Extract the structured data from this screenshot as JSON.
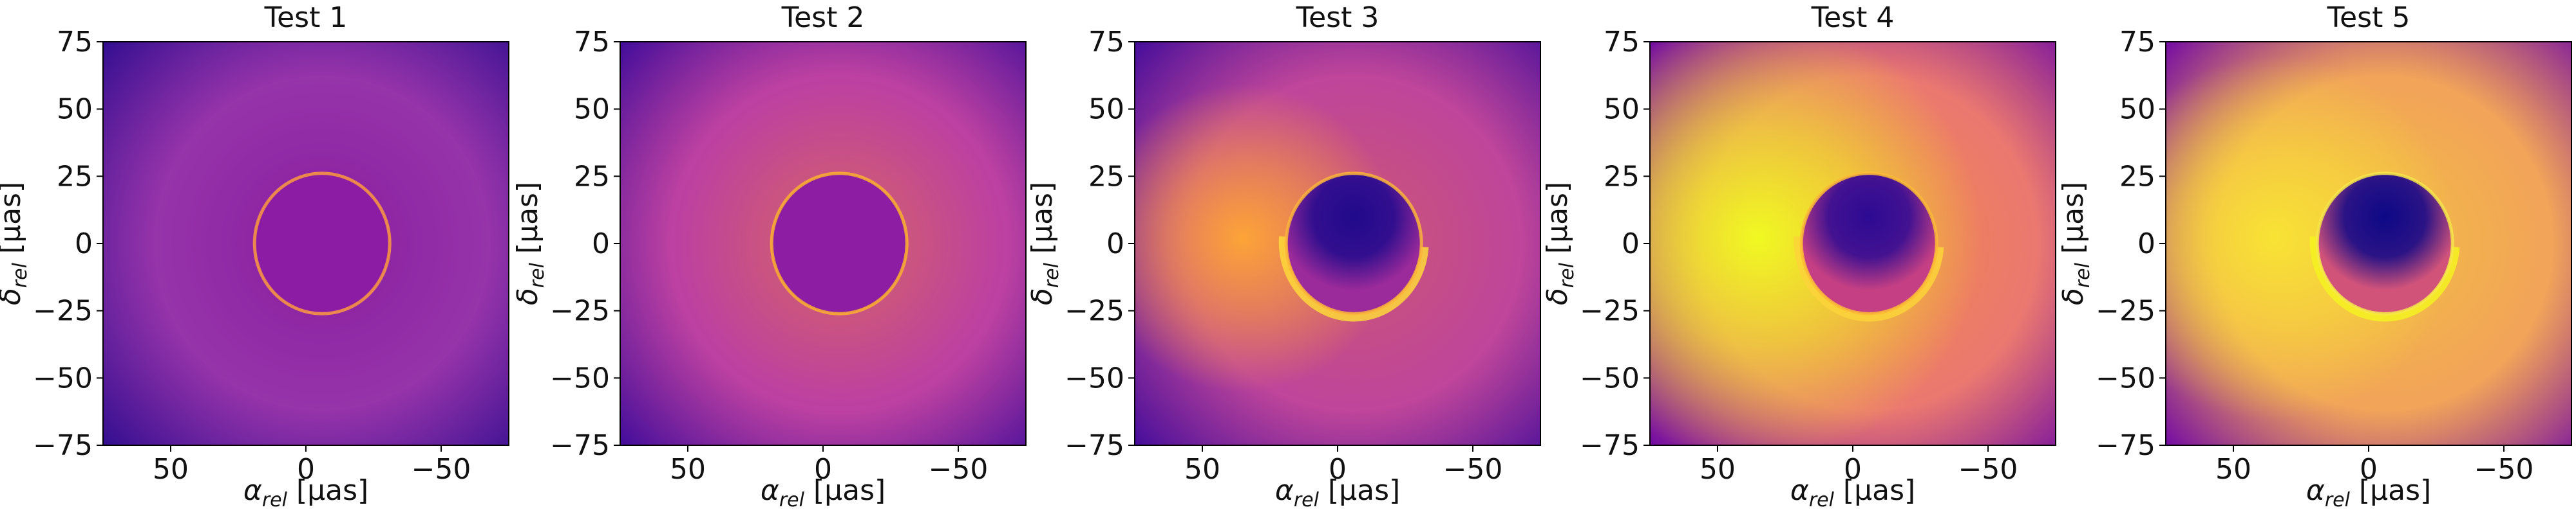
{
  "chart_data": [
    {
      "type": "heatmap",
      "title": "Test 1",
      "xlabel_symbol": "α",
      "xlabel_sub": "rel",
      "xlabel_unit": "[μas]",
      "ylabel_symbol": "δ",
      "ylabel_sub": "rel",
      "ylabel_unit": "[μas]",
      "xlim": [
        75,
        -75
      ],
      "ylim": [
        -75,
        75
      ],
      "xticks": [
        50,
        0,
        -50
      ],
      "yticks": [
        75,
        50,
        25,
        0,
        -25,
        -50,
        -75
      ],
      "colormap": "plasma",
      "brightness": "faint, near-uniform, thin bright ring"
    },
    {
      "type": "heatmap",
      "title": "Test 2",
      "xlabel_symbol": "α",
      "xlabel_sub": "rel",
      "xlabel_unit": "[μas]",
      "ylabel_symbol": "δ",
      "ylabel_sub": "rel",
      "ylabel_unit": "[μas]",
      "xlim": [
        75,
        -75
      ],
      "ylim": [
        -75,
        75
      ],
      "xticks": [
        50,
        0,
        -50
      ],
      "yticks": [
        75,
        50,
        25,
        0,
        -25,
        -50,
        -75
      ],
      "colormap": "plasma",
      "brightness": "brighter halo, bright ring"
    },
    {
      "type": "heatmap",
      "title": "Test 3",
      "xlabel_symbol": "α",
      "xlabel_sub": "rel",
      "xlabel_unit": "[μas]",
      "ylabel_symbol": "δ",
      "ylabel_sub": "rel",
      "ylabel_unit": "[μas]",
      "xlim": [
        75,
        -75
      ],
      "ylim": [
        -75,
        75
      ],
      "xticks": [
        50,
        0,
        -50
      ],
      "yticks": [
        75,
        50,
        25,
        0,
        -25,
        -50,
        -75
      ],
      "colormap": "plasma",
      "brightness": "asymmetric, bright left lobe, dark shadow"
    },
    {
      "type": "heatmap",
      "title": "Test 4",
      "xlabel_symbol": "α",
      "xlabel_sub": "rel",
      "xlabel_unit": "[μas]",
      "ylabel_symbol": "δ",
      "ylabel_sub": "rel",
      "ylabel_unit": "[μas]",
      "xlim": [
        75,
        -75
      ],
      "ylim": [
        -75,
        75
      ],
      "xticks": [
        50,
        0,
        -50
      ],
      "yticks": [
        75,
        50,
        25,
        0,
        -25,
        -50,
        -75
      ],
      "colormap": "plasma",
      "brightness": "bright diffuse emission, dark shadow"
    },
    {
      "type": "heatmap",
      "title": "Test 5",
      "xlabel_symbol": "α",
      "xlabel_sub": "rel",
      "xlabel_unit": "[μas]",
      "ylabel_symbol": "δ",
      "ylabel_sub": "rel",
      "ylabel_unit": "[μas]",
      "xlim": [
        75,
        -75
      ],
      "ylim": [
        -75,
        75
      ],
      "xticks": [
        50,
        0,
        -50
      ],
      "yticks": [
        75,
        50,
        25,
        0,
        -25,
        -50,
        -75
      ],
      "colormap": "plasma",
      "brightness": "very bright, deep shadow, bright crescent"
    }
  ]
}
